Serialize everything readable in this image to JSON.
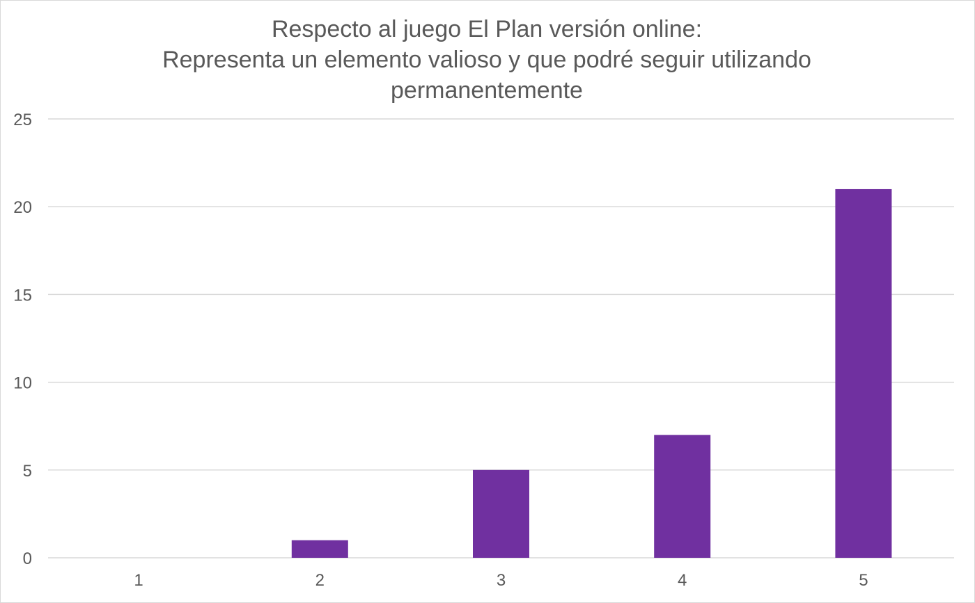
{
  "chart_data": {
    "type": "bar",
    "title_lines": [
      "Respecto al juego El Plan versión online:",
      "Representa un elemento valioso y que podré seguir utilizando",
      "permanentemente"
    ],
    "xlabel": "",
    "ylabel": "",
    "categories": [
      "1",
      "2",
      "3",
      "4",
      "5"
    ],
    "values": [
      0,
      1,
      5,
      7,
      21
    ],
    "ylim": [
      0,
      25
    ],
    "yticks": [
      "0",
      "5",
      "10",
      "15",
      "20",
      "25"
    ],
    "grid": true,
    "legend": "none",
    "bar_color": "#7030A0",
    "grid_color": "#d9d9d9",
    "text_color": "#595959"
  }
}
